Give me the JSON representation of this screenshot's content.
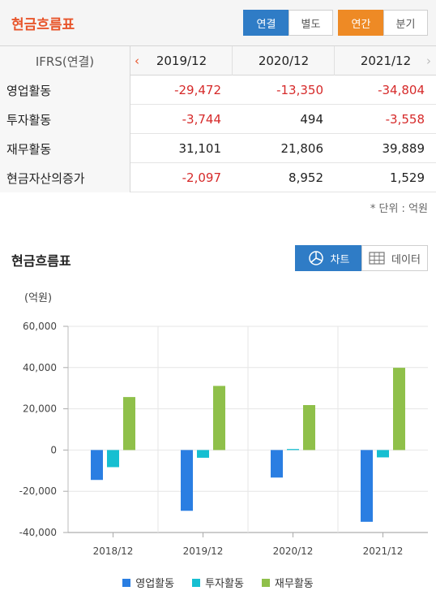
{
  "header": {
    "title": "현금흐름표",
    "toggles": [
      {
        "label": "연결",
        "active": true
      },
      {
        "label": "별도",
        "active": false
      },
      {
        "label": "연간",
        "active": true
      },
      {
        "label": "분기",
        "active": false
      }
    ]
  },
  "table": {
    "first_col_header": "IFRS(연결)",
    "columns": [
      "2019/12",
      "2020/12",
      "2021/12"
    ],
    "rows": [
      {
        "label": "영업활동",
        "values": [
          "-29,472",
          "-13,350",
          "-34,804"
        ]
      },
      {
        "label": "투자활동",
        "values": [
          "-3,744",
          "494",
          "-3,558"
        ]
      },
      {
        "label": "재무활동",
        "values": [
          "31,101",
          "21,806",
          "39,889"
        ]
      },
      {
        "label": "현금자산의증가",
        "values": [
          "-2,097",
          "8,952",
          "1,529"
        ]
      }
    ],
    "unit_note": "* 단위 : 억원"
  },
  "chart_section": {
    "title": "현금흐름표",
    "chart_button": "차트",
    "data_button": "데이터",
    "unit": "(억원)"
  },
  "colors": {
    "operating": "#2a7ee2",
    "investing": "#16bfd1",
    "financing": "#8fc04a",
    "negative": "#d62a2a",
    "accent_orange": "#e8552b"
  },
  "chart_data": {
    "type": "bar",
    "categories": [
      "2018/12",
      "2019/12",
      "2020/12",
      "2021/12"
    ],
    "series": [
      {
        "name": "영업활동",
        "values": [
          -14500,
          -29472,
          -13350,
          -34804
        ]
      },
      {
        "name": "투자활동",
        "values": [
          -8300,
          -3744,
          494,
          -3558
        ]
      },
      {
        "name": "재무활동",
        "values": [
          25700,
          31101,
          21806,
          39889
        ]
      }
    ],
    "ylabel": "(억원)",
    "ylim": [
      -40000,
      60000
    ],
    "yticks": [
      "60,000",
      "40,000",
      "20,000",
      "0",
      "-20,000",
      "-40,000"
    ],
    "grid": true,
    "legend": "bottom"
  }
}
